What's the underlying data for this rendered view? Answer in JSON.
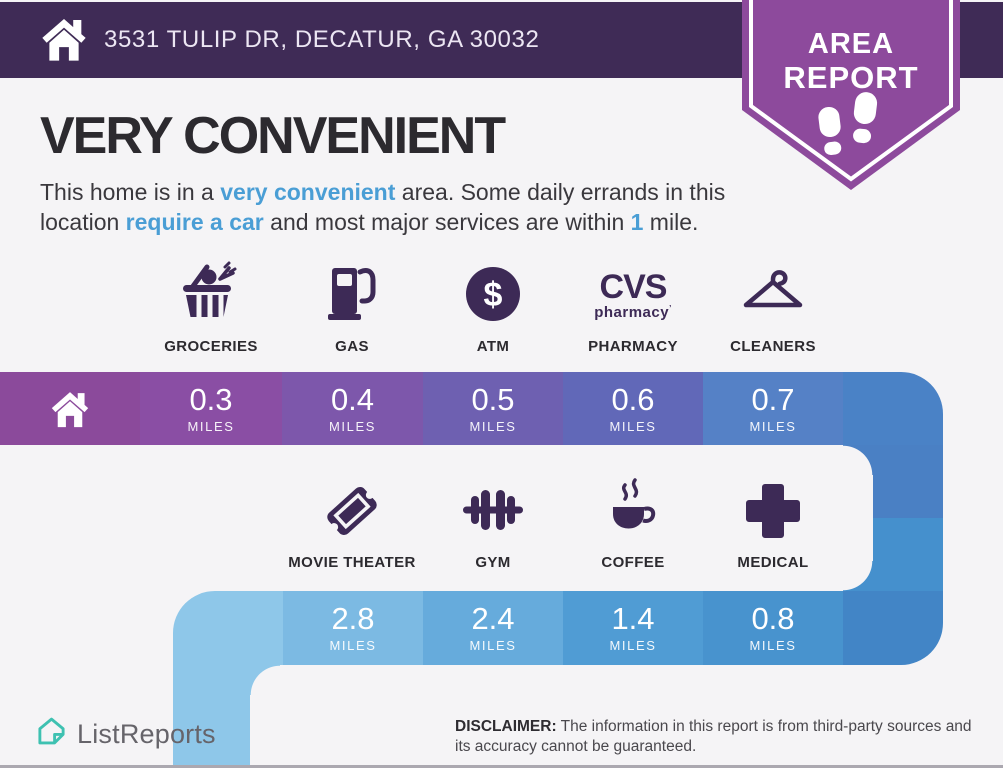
{
  "theme": {
    "background": "#f5f4f6",
    "header_purple": "#3f2b56",
    "badge_purple": "#8d4a9c",
    "icon_purple": "#3d2a56",
    "accent_blue": "#4a9ed5",
    "brand_teal": "#3ec1b1"
  },
  "header": {
    "address": "3531 TULIP DR, DECATUR, GA 30032"
  },
  "badge": {
    "line1": "AREA",
    "line2": "REPORT"
  },
  "main": {
    "headline": "VERY CONVENIENT",
    "paragraph": [
      {
        "text": "This home is in a ",
        "highlight": false
      },
      {
        "text": "very convenient",
        "highlight": true
      },
      {
        "text": " area. Some daily errands in this location ",
        "highlight": false
      },
      {
        "text": "require a car",
        "highlight": true
      },
      {
        "text": " and most major services are within ",
        "highlight": false
      },
      {
        "text": "1",
        "highlight": true
      },
      {
        "text": " mile.",
        "highlight": false
      }
    ]
  },
  "row1": {
    "home_color": "#8b4a9b",
    "tail_color": "#4a82c6",
    "atm_symbol": "$",
    "cvs_logo": {
      "line1": "CVS",
      "line2": "pharmacy",
      "mark": "’"
    },
    "items": [
      {
        "label": "GROCERIES",
        "icon": "groceries-basket-icon",
        "distance": "0.3",
        "unit": "MILES",
        "color": "#8a4ea4"
      },
      {
        "label": "GAS",
        "icon": "gas-pump-icon",
        "distance": "0.4",
        "unit": "MILES",
        "color": "#7d57ab"
      },
      {
        "label": "ATM",
        "icon": "atm-dollar-icon",
        "distance": "0.5",
        "unit": "MILES",
        "color": "#6e60b1"
      },
      {
        "label": "PHARMACY",
        "icon": "cvs-pharmacy-logo",
        "distance": "0.6",
        "unit": "MILES",
        "color": "#6168b8"
      },
      {
        "label": "CLEANERS",
        "icon": "hanger-icon",
        "distance": "0.7",
        "unit": "MILES",
        "color": "#5581c6"
      }
    ]
  },
  "row2": {
    "curve_color": "#8ec7e9",
    "tail_color": "#4285c6",
    "items": [
      {
        "label": "MOVIE THEATER",
        "icon": "movie-ticket-icon",
        "distance": "2.8",
        "unit": "MILES",
        "color": "#7cbae3"
      },
      {
        "label": "GYM",
        "icon": "dumbbell-icon",
        "distance": "2.4",
        "unit": "MILES",
        "color": "#66abdc"
      },
      {
        "label": "COFFEE",
        "icon": "coffee-cup-icon",
        "distance": "1.4",
        "unit": "MILES",
        "color": "#509cd4"
      },
      {
        "label": "MEDICAL",
        "icon": "medical-cross-icon",
        "distance": "0.8",
        "unit": "MILES",
        "color": "#4893ce"
      }
    ]
  },
  "footer": {
    "brand": "ListReports",
    "disclaimer_label": "DISCLAIMER:",
    "disclaimer_text": " The information in this report is from third-party sources and its accuracy cannot be guaranteed."
  },
  "chart_data": {
    "type": "bar",
    "title": "VERY CONVENIENT",
    "subtitle": "This home is in a very convenient area. Some daily errands in this location require a car and most major services are within 1 mile.",
    "categories": [
      "GROCERIES",
      "GAS",
      "ATM",
      "PHARMACY",
      "CLEANERS",
      "MOVIE THEATER",
      "GYM",
      "COFFEE",
      "MEDICAL"
    ],
    "values": [
      0.3,
      0.4,
      0.5,
      0.6,
      0.7,
      2.8,
      2.4,
      1.4,
      0.8
    ],
    "unit": "miles",
    "groups": [
      {
        "name": "row-1",
        "categories": [
          "GROCERIES",
          "GAS",
          "ATM",
          "PHARMACY",
          "CLEANERS"
        ],
        "values": [
          0.3,
          0.4,
          0.5,
          0.6,
          0.7
        ]
      },
      {
        "name": "row-2",
        "categories": [
          "MOVIE THEATER",
          "GYM",
          "COFFEE",
          "MEDICAL"
        ],
        "values": [
          2.8,
          2.4,
          1.4,
          0.8
        ]
      }
    ]
  }
}
